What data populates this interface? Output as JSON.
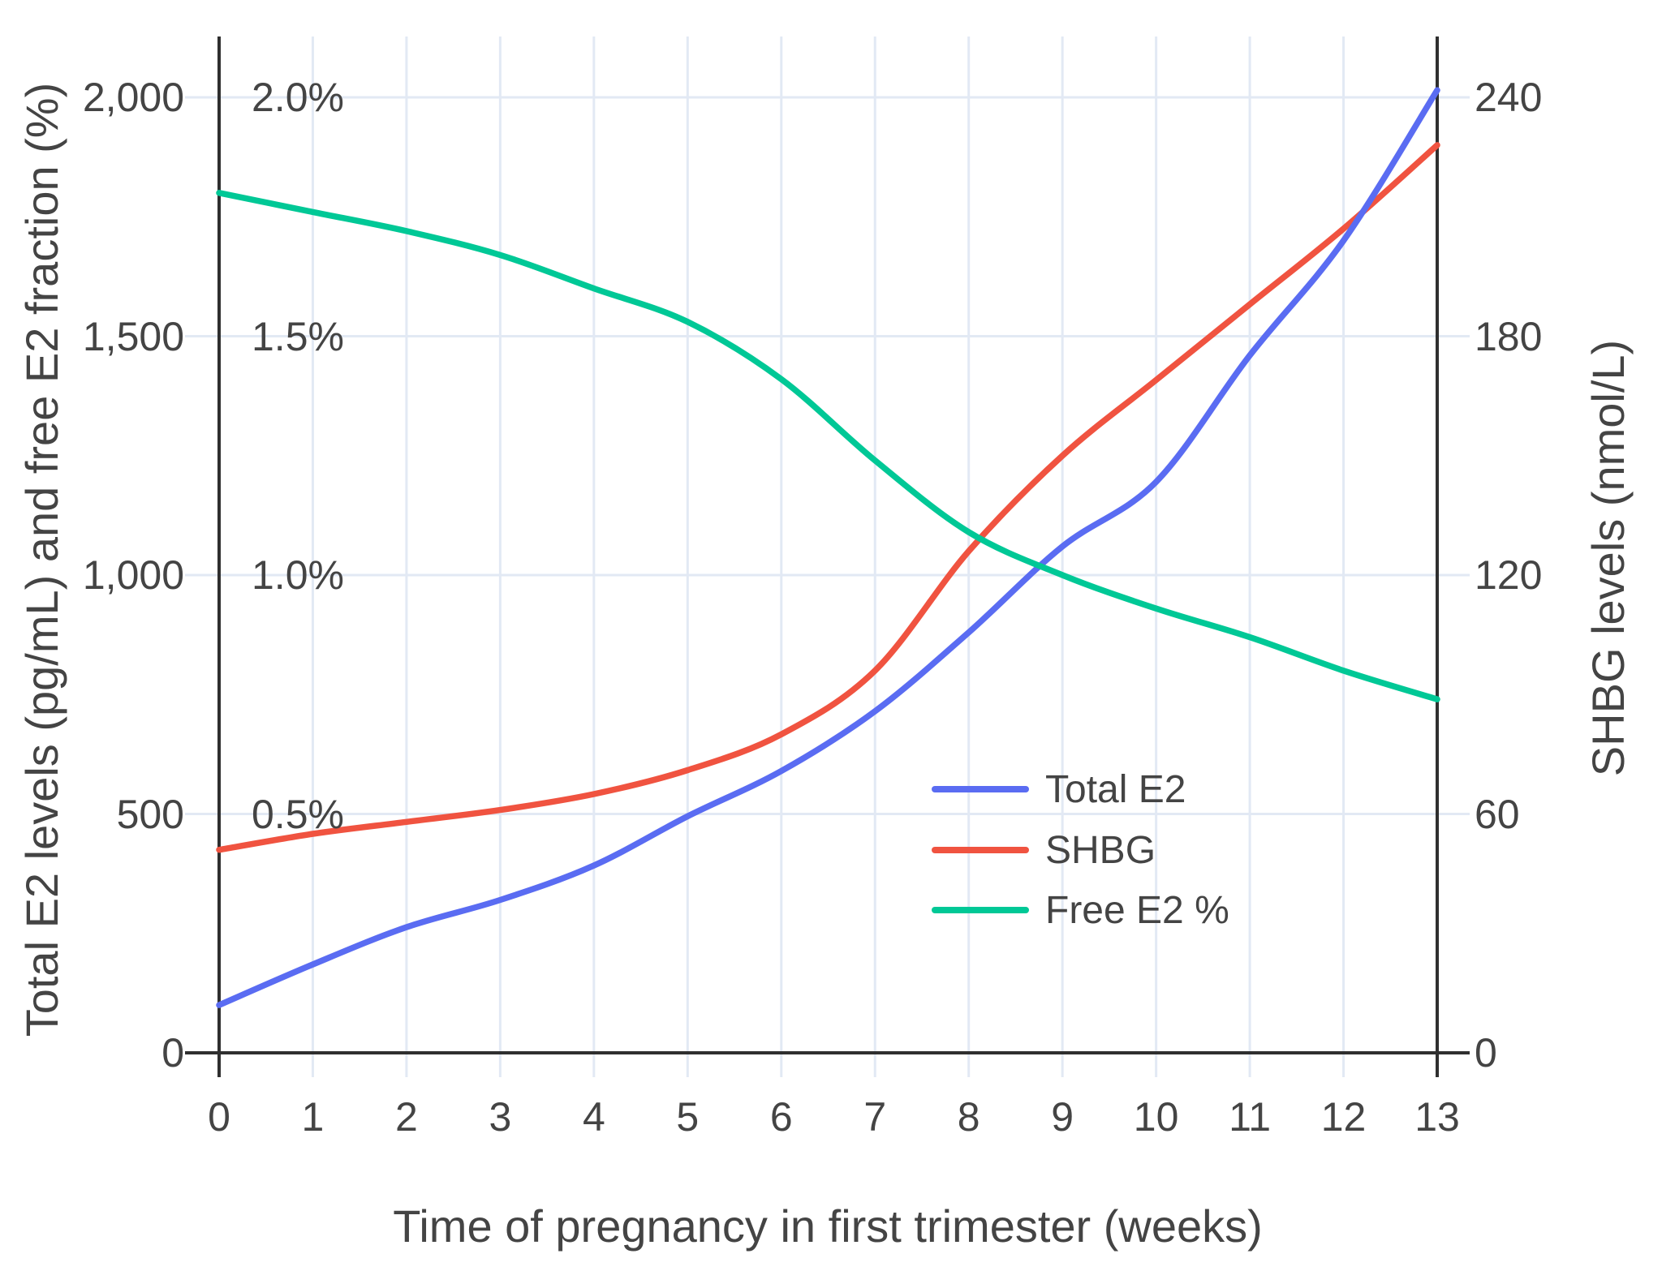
{
  "chart_data": {
    "type": "line",
    "x": [
      0,
      1,
      2,
      3,
      4,
      5,
      6,
      7,
      8,
      9,
      10,
      11,
      12,
      13
    ],
    "xlabel": "Time of pregnancy in first trimester (weeks)",
    "ylabel_left": "Total E2 levels (pg/mL) and free E2 fraction (%)",
    "ylabel_right": "SHBG levels (nmol/L)",
    "x_tick_labels": [
      "0",
      "1",
      "2",
      "3",
      "4",
      "5",
      "6",
      "7",
      "8",
      "9",
      "10",
      "11",
      "12",
      "13"
    ],
    "left_ticks": {
      "values": [
        0,
        500,
        1000,
        1500,
        2000
      ],
      "labels": [
        "0",
        "500",
        "1,000",
        "1,500",
        "2,000"
      ]
    },
    "percent_ticks": {
      "values": [
        0.5,
        1.0,
        1.5,
        2.0
      ],
      "labels": [
        "0.5%",
        "1.0%",
        "1.5%",
        "2.0%"
      ]
    },
    "right_ticks": {
      "values": [
        0,
        60,
        120,
        180,
        240
      ],
      "labels": [
        "0",
        "60",
        "120",
        "180",
        "240"
      ]
    },
    "left_axis_range": [
      0,
      2127
    ],
    "right_axis_range": [
      0,
      255.3
    ],
    "percent_axis_range": [
      0,
      2.127
    ],
    "grid": true,
    "legend_position": "inside-lower-right",
    "series": [
      {
        "name": "Total E2",
        "axis": "left",
        "color": "#5A6CF2",
        "values": [
          100,
          185,
          263,
          320,
          392,
          495,
          590,
          715,
          880,
          1060,
          1195,
          1460,
          1700,
          2015
        ]
      },
      {
        "name": "SHBG",
        "axis": "right",
        "color": "#F05340",
        "values": [
          51,
          55,
          58,
          61,
          65,
          71,
          80,
          96,
          126,
          150,
          169,
          188,
          207,
          228
        ]
      },
      {
        "name": "Free E2 %",
        "axis": "percent",
        "color": "#00C896",
        "values": [
          1.8,
          1.76,
          1.72,
          1.67,
          1.6,
          1.53,
          1.41,
          1.24,
          1.09,
          1.0,
          0.93,
          0.87,
          0.8,
          0.74
        ]
      }
    ],
    "colors": {
      "gridline": "#E2E9F4",
      "axis_line": "#2F2F2F",
      "text": "#444444"
    }
  }
}
